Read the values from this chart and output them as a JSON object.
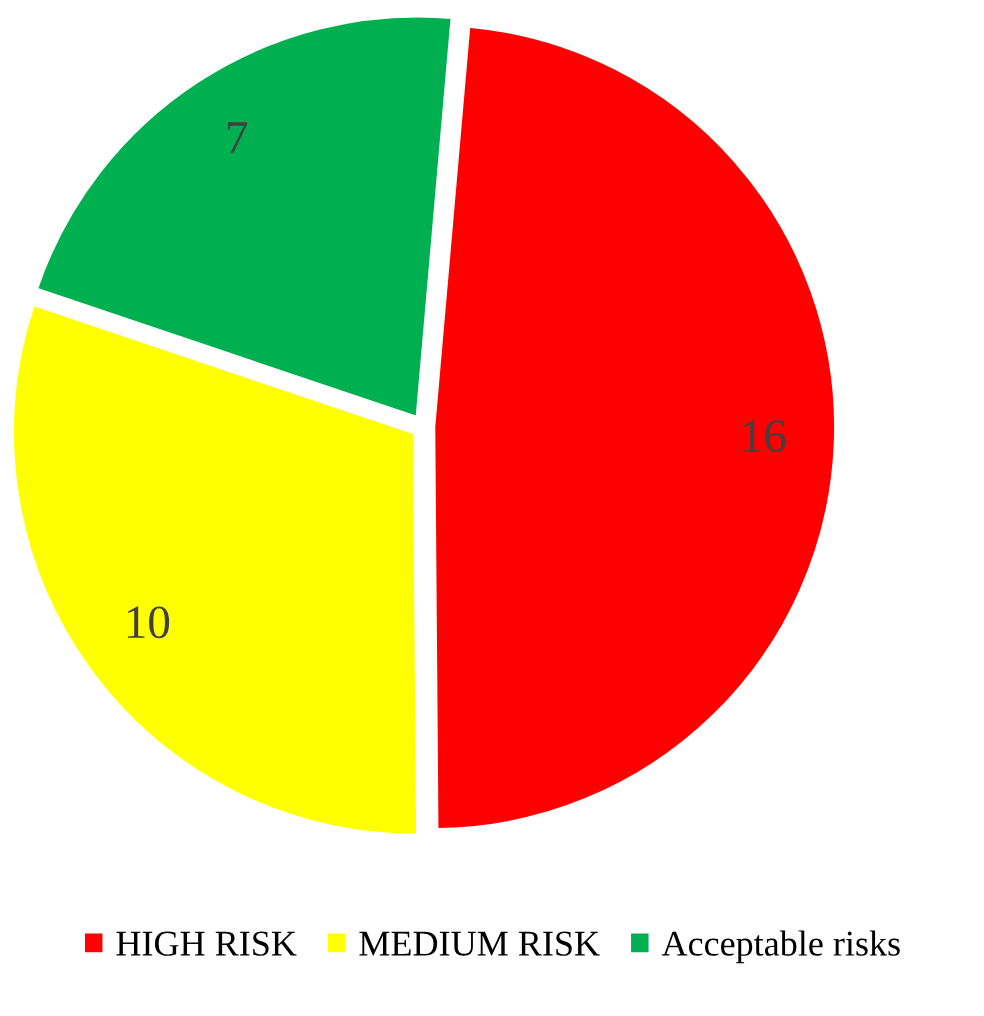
{
  "chart_data": {
    "type": "pie",
    "categories": [
      "HIGH RISK",
      "MEDIUM RISK",
      "Acceptable risks"
    ],
    "values": [
      16,
      10,
      7
    ],
    "colors": [
      "#ff0000",
      "#ffff00",
      "#00b050"
    ],
    "data_labels": true,
    "legend": "bottom"
  }
}
